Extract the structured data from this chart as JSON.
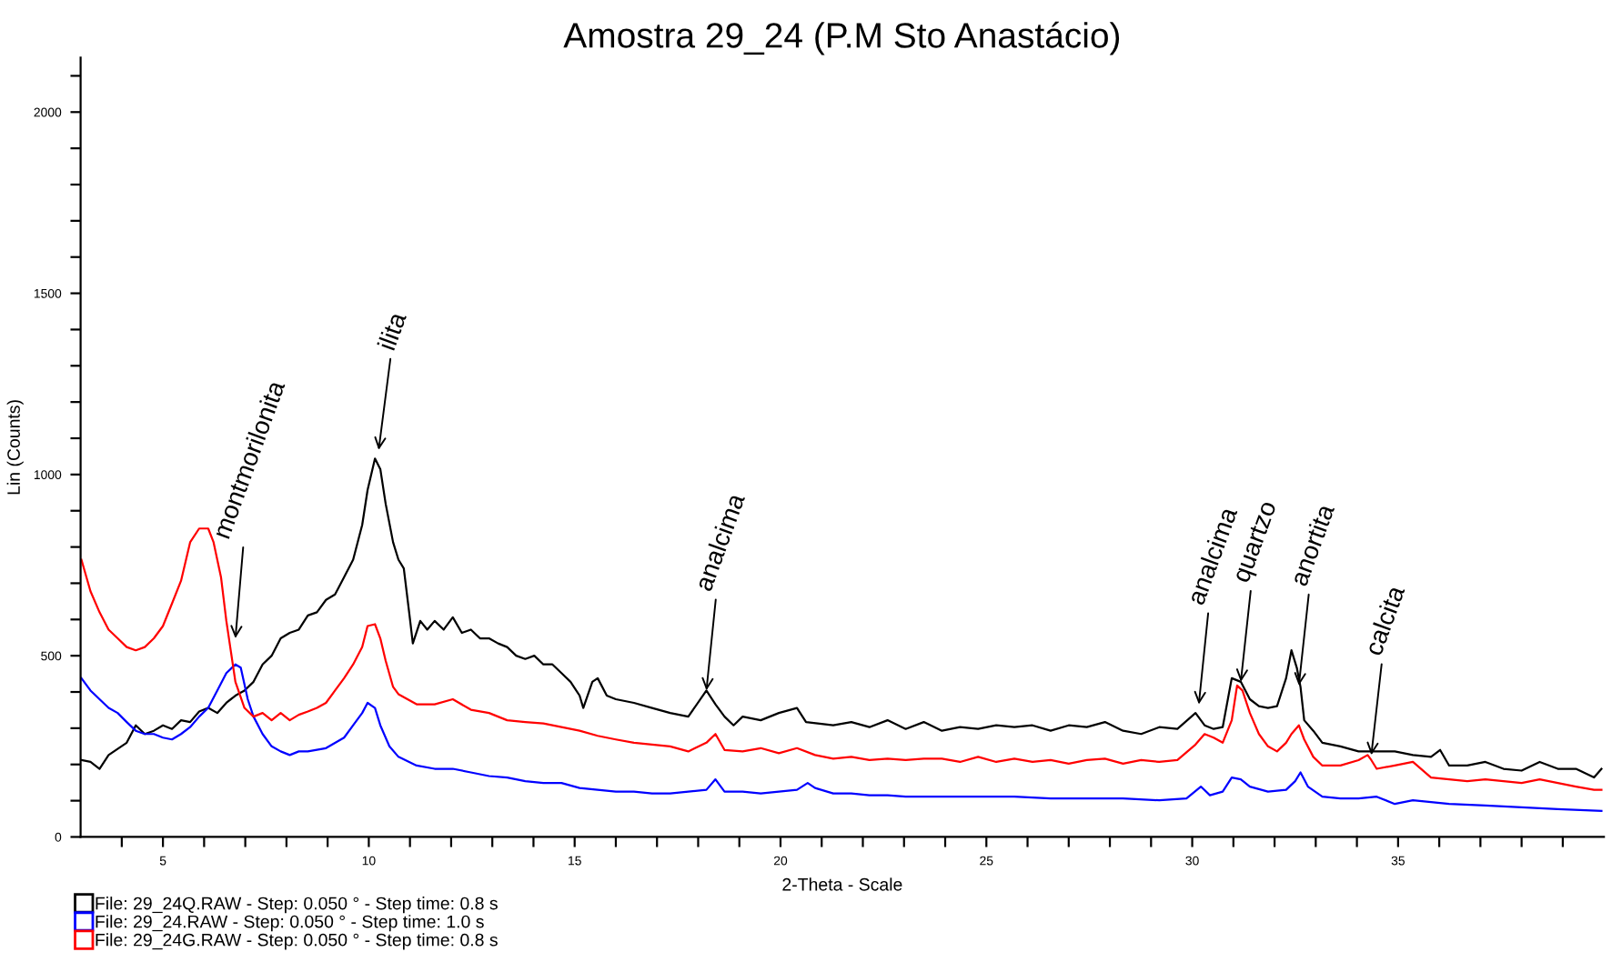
{
  "chart_data": {
    "type": "line",
    "title": "Amostra 29_24 (P.M Sto Anastácio)",
    "xlabel": "2-Theta - Scale",
    "ylabel": "Lin (Counts)",
    "xlim": [
      3.0,
      40.0
    ],
    "ylim": [
      0,
      2150
    ],
    "xticks": [
      {
        "value": 4,
        "label": null
      },
      5,
      {
        "value": 6,
        "label": null
      },
      {
        "value": 7,
        "label": null
      },
      {
        "value": 8,
        "label": null
      },
      {
        "value": 9,
        "label": null
      },
      10,
      {
        "value": 11,
        "label": null
      },
      {
        "value": 12,
        "label": null
      },
      {
        "value": 13,
        "label": null
      },
      {
        "value": 14,
        "label": null
      },
      15,
      {
        "value": 16,
        "label": null
      },
      {
        "value": 17,
        "label": null
      },
      {
        "value": 18,
        "label": null
      },
      {
        "value": 19,
        "label": null
      },
      20,
      {
        "value": 21,
        "label": null
      },
      {
        "value": 22,
        "label": null
      },
      {
        "value": 23,
        "label": null
      },
      {
        "value": 24,
        "label": null
      },
      25,
      {
        "value": 26,
        "label": null
      },
      {
        "value": 27,
        "label": null
      },
      {
        "value": 28,
        "label": null
      },
      {
        "value": 29,
        "label": null
      },
      30,
      {
        "value": 31,
        "label": null
      },
      {
        "value": 32,
        "label": null
      },
      {
        "value": 33,
        "label": null
      },
      {
        "value": 34,
        "label": null
      },
      35,
      {
        "value": 36,
        "label": null
      },
      {
        "value": 37,
        "label": null
      },
      {
        "value": 38,
        "label": null
      },
      {
        "value": 39,
        "label": null
      }
    ],
    "yticks": [
      0,
      {
        "value": 100,
        "label": null
      },
      {
        "value": 200,
        "label": null
      },
      {
        "value": 300,
        "label": null
      },
      {
        "value": 400,
        "label": null
      },
      500,
      {
        "value": 600,
        "label": null
      },
      {
        "value": 700,
        "label": null
      },
      {
        "value": 800,
        "label": null
      },
      {
        "value": 900,
        "label": null
      },
      1000,
      {
        "value": 1100,
        "label": null
      },
      {
        "value": 1200,
        "label": null
      },
      {
        "value": 1300,
        "label": null
      },
      {
        "value": 1400,
        "label": null
      },
      1500,
      {
        "value": 1600,
        "label": null
      },
      {
        "value": 1700,
        "label": null
      },
      {
        "value": 1800,
        "label": null
      },
      {
        "value": 1900,
        "label": null
      },
      2000,
      {
        "value": 2100,
        "label": null
      }
    ],
    "grid": false,
    "legend": "bottom left",
    "marker": "none",
    "line_style": "solid",
    "series": [
      {
        "name": "File: 29_24Q.RAW - Step: 0.050 ° - Step time: 0.8 s",
        "color": "#000000",
        "x": [
          3.02,
          3.24,
          3.46,
          3.68,
          4.12,
          4.34,
          4.56,
          4.78,
          5.0,
          5.22,
          5.44,
          5.66,
          5.88,
          6.1,
          6.32,
          6.54,
          6.76,
          6.98,
          7.2,
          7.42,
          7.64,
          7.86,
          8.08,
          8.3,
          8.52,
          8.74,
          8.96,
          9.18,
          9.4,
          9.62,
          9.84,
          9.97,
          10.15,
          10.28,
          10.41,
          10.59,
          10.72,
          10.85,
          10.98,
          11.07,
          11.25,
          11.42,
          11.6,
          11.82,
          12.04,
          12.26,
          12.48,
          12.7,
          12.92,
          13.14,
          13.36,
          13.58,
          13.8,
          14.02,
          14.24,
          14.46,
          14.68,
          14.9,
          15.12,
          15.21,
          15.43,
          15.56,
          15.78,
          16.0,
          16.44,
          16.88,
          17.32,
          17.76,
          18.2,
          18.42,
          18.64,
          18.86,
          19.08,
          19.52,
          19.96,
          20.4,
          20.62,
          21.28,
          21.72,
          22.16,
          22.6,
          23.04,
          23.48,
          23.92,
          24.36,
          24.8,
          25.24,
          25.68,
          26.12,
          26.56,
          27.0,
          27.44,
          27.88,
          28.32,
          28.76,
          29.2,
          29.64,
          30.08,
          30.3,
          30.52,
          30.74,
          30.96,
          31.18,
          31.4,
          31.62,
          31.84,
          32.06,
          32.28,
          32.41,
          32.54,
          32.63,
          32.72,
          32.94,
          33.16,
          33.6,
          34.04,
          34.48,
          34.92,
          35.36,
          35.8,
          36.02,
          36.24,
          36.68,
          37.12,
          37.56,
          38.0,
          38.44,
          38.88,
          39.32,
          39.76,
          39.94
        ],
        "values": [
          212,
          207,
          188,
          226,
          260,
          308,
          284,
          293,
          308,
          298,
          322,
          317,
          346,
          356,
          342,
          370,
          390,
          404,
          428,
          476,
          500,
          548,
          563,
          572,
          611,
          620,
          654,
          669,
          717,
          765,
          861,
          957,
          1044,
          1015,
          919,
          813,
          765,
          741,
          620,
          534,
          596,
          572,
          596,
          572,
          606,
          563,
          572,
          548,
          548,
          534,
          524,
          500,
          491,
          500,
          476,
          476,
          452,
          428,
          390,
          356,
          428,
          438,
          390,
          380,
          370,
          356,
          342,
          332,
          404,
          366,
          332,
          308,
          332,
          322,
          342,
          356,
          317,
          308,
          317,
          303,
          322,
          298,
          317,
          293,
          303,
          298,
          308,
          303,
          308,
          293,
          308,
          303,
          317,
          293,
          284,
          303,
          298,
          342,
          308,
          298,
          303,
          438,
          428,
          380,
          361,
          356,
          361,
          438,
          515,
          467,
          414,
          322,
          293,
          260,
          250,
          236,
          236,
          236,
          226,
          221,
          240,
          197,
          197,
          207,
          188,
          183,
          207,
          188,
          188,
          164,
          188
        ]
      },
      {
        "name": "File: 29_24.RAW - Step: 0.050 ° - Step time: 1.0 s",
        "color": "#0000ff",
        "x": [
          3.02,
          3.24,
          3.46,
          3.68,
          3.9,
          4.12,
          4.34,
          4.56,
          4.78,
          5.0,
          5.22,
          5.44,
          5.66,
          5.88,
          6.1,
          6.32,
          6.54,
          6.76,
          6.89,
          7.06,
          7.2,
          7.42,
          7.64,
          7.86,
          8.08,
          8.3,
          8.52,
          8.96,
          9.4,
          9.62,
          9.84,
          9.97,
          10.15,
          10.28,
          10.5,
          10.72,
          11.16,
          11.6,
          12.04,
          12.48,
          12.92,
          13.36,
          13.8,
          14.24,
          14.68,
          15.12,
          15.56,
          16.0,
          16.44,
          16.88,
          17.32,
          17.76,
          18.2,
          18.42,
          18.64,
          19.08,
          19.52,
          19.96,
          20.4,
          20.66,
          20.84,
          21.28,
          21.72,
          22.16,
          22.6,
          23.04,
          23.92,
          24.8,
          25.68,
          26.56,
          27.44,
          28.32,
          29.2,
          29.86,
          30.21,
          30.43,
          30.74,
          30.96,
          31.18,
          31.4,
          31.84,
          32.28,
          32.5,
          32.63,
          32.81,
          33.16,
          33.6,
          34.04,
          34.48,
          34.92,
          35.36,
          36.24,
          37.12,
          38.0,
          38.88,
          39.94
        ],
        "values": [
          438,
          404,
          380,
          356,
          342,
          317,
          293,
          284,
          284,
          274,
          269,
          284,
          303,
          332,
          356,
          404,
          452,
          476,
          467,
          380,
          332,
          284,
          250,
          236,
          226,
          236,
          236,
          245,
          274,
          308,
          342,
          370,
          356,
          308,
          250,
          221,
          197,
          188,
          188,
          178,
          168,
          164,
          154,
          149,
          149,
          135,
          130,
          125,
          125,
          120,
          120,
          125,
          130,
          159,
          125,
          125,
          120,
          125,
          130,
          149,
          135,
          120,
          120,
          115,
          115,
          111,
          111,
          111,
          111,
          106,
          106,
          106,
          101,
          106,
          139,
          115,
          125,
          164,
          159,
          139,
          125,
          130,
          154,
          178,
          139,
          111,
          106,
          106,
          111,
          91,
          101,
          91,
          87,
          82,
          77,
          72
        ]
      },
      {
        "name": "File: 29_24G.RAW - Step: 0.050 ° - Step time: 0.8 s",
        "color": "#ff0000",
        "x": [
          3.02,
          3.24,
          3.46,
          3.68,
          3.9,
          4.12,
          4.34,
          4.56,
          4.78,
          5.0,
          5.22,
          5.44,
          5.66,
          5.88,
          6.1,
          6.23,
          6.41,
          6.54,
          6.76,
          6.98,
          7.2,
          7.42,
          7.64,
          7.86,
          8.08,
          8.3,
          8.52,
          8.74,
          8.96,
          9.18,
          9.4,
          9.62,
          9.84,
          9.97,
          10.15,
          10.28,
          10.41,
          10.59,
          10.72,
          10.94,
          11.16,
          11.6,
          12.04,
          12.48,
          12.92,
          13.36,
          13.8,
          14.24,
          14.68,
          15.12,
          15.56,
          16.0,
          16.44,
          16.88,
          17.32,
          17.76,
          18.2,
          18.42,
          18.64,
          19.08,
          19.52,
          19.96,
          20.4,
          20.84,
          21.28,
          21.72,
          22.16,
          22.6,
          23.04,
          23.48,
          23.92,
          24.36,
          24.8,
          25.24,
          25.68,
          26.12,
          26.56,
          27.0,
          27.44,
          27.88,
          28.32,
          28.76,
          29.2,
          29.64,
          30.08,
          30.3,
          30.52,
          30.74,
          30.96,
          31.09,
          31.22,
          31.4,
          31.62,
          31.84,
          32.06,
          32.28,
          32.41,
          32.59,
          32.72,
          32.94,
          33.16,
          33.6,
          34.04,
          34.26,
          34.35,
          34.48,
          34.92,
          35.36,
          35.8,
          36.24,
          36.68,
          37.12,
          37.56,
          38.0,
          38.44,
          38.88,
          39.32,
          39.76,
          39.94
        ],
        "values": [
          765,
          678,
          620,
          572,
          548,
          524,
          515,
          524,
          548,
          582,
          644,
          707,
          813,
          851,
          851,
          813,
          717,
          596,
          428,
          356,
          332,
          342,
          322,
          342,
          322,
          337,
          346,
          356,
          370,
          404,
          438,
          476,
          524,
          582,
          587,
          548,
          486,
          414,
          394,
          380,
          366,
          366,
          380,
          351,
          342,
          322,
          317,
          313,
          303,
          293,
          279,
          269,
          260,
          255,
          250,
          236,
          260,
          284,
          240,
          236,
          245,
          231,
          245,
          226,
          216,
          221,
          212,
          216,
          212,
          216,
          216,
          207,
          221,
          207,
          216,
          207,
          212,
          202,
          212,
          216,
          202,
          212,
          207,
          212,
          255,
          284,
          274,
          260,
          322,
          418,
          404,
          342,
          284,
          250,
          236,
          260,
          284,
          308,
          269,
          221,
          197,
          197,
          212,
          226,
          212,
          188,
          197,
          207,
          164,
          159,
          154,
          159,
          154,
          149,
          159,
          149,
          139,
          130,
          130
        ]
      }
    ],
    "annotations": [
      {
        "text": "montmorilonita",
        "x": 6.76,
        "y": 548
      },
      {
        "text": "ilita",
        "x": 10.24,
        "y": 1068
      },
      {
        "text": "analcima",
        "x": 18.2,
        "y": 404
      },
      {
        "text": "analcima",
        "x": 30.16,
        "y": 366
      },
      {
        "text": "quartzo",
        "x": 31.18,
        "y": 428
      },
      {
        "text": "anortita",
        "x": 32.59,
        "y": 418
      },
      {
        "text": "calcita",
        "x": 34.35,
        "y": 226
      }
    ]
  }
}
